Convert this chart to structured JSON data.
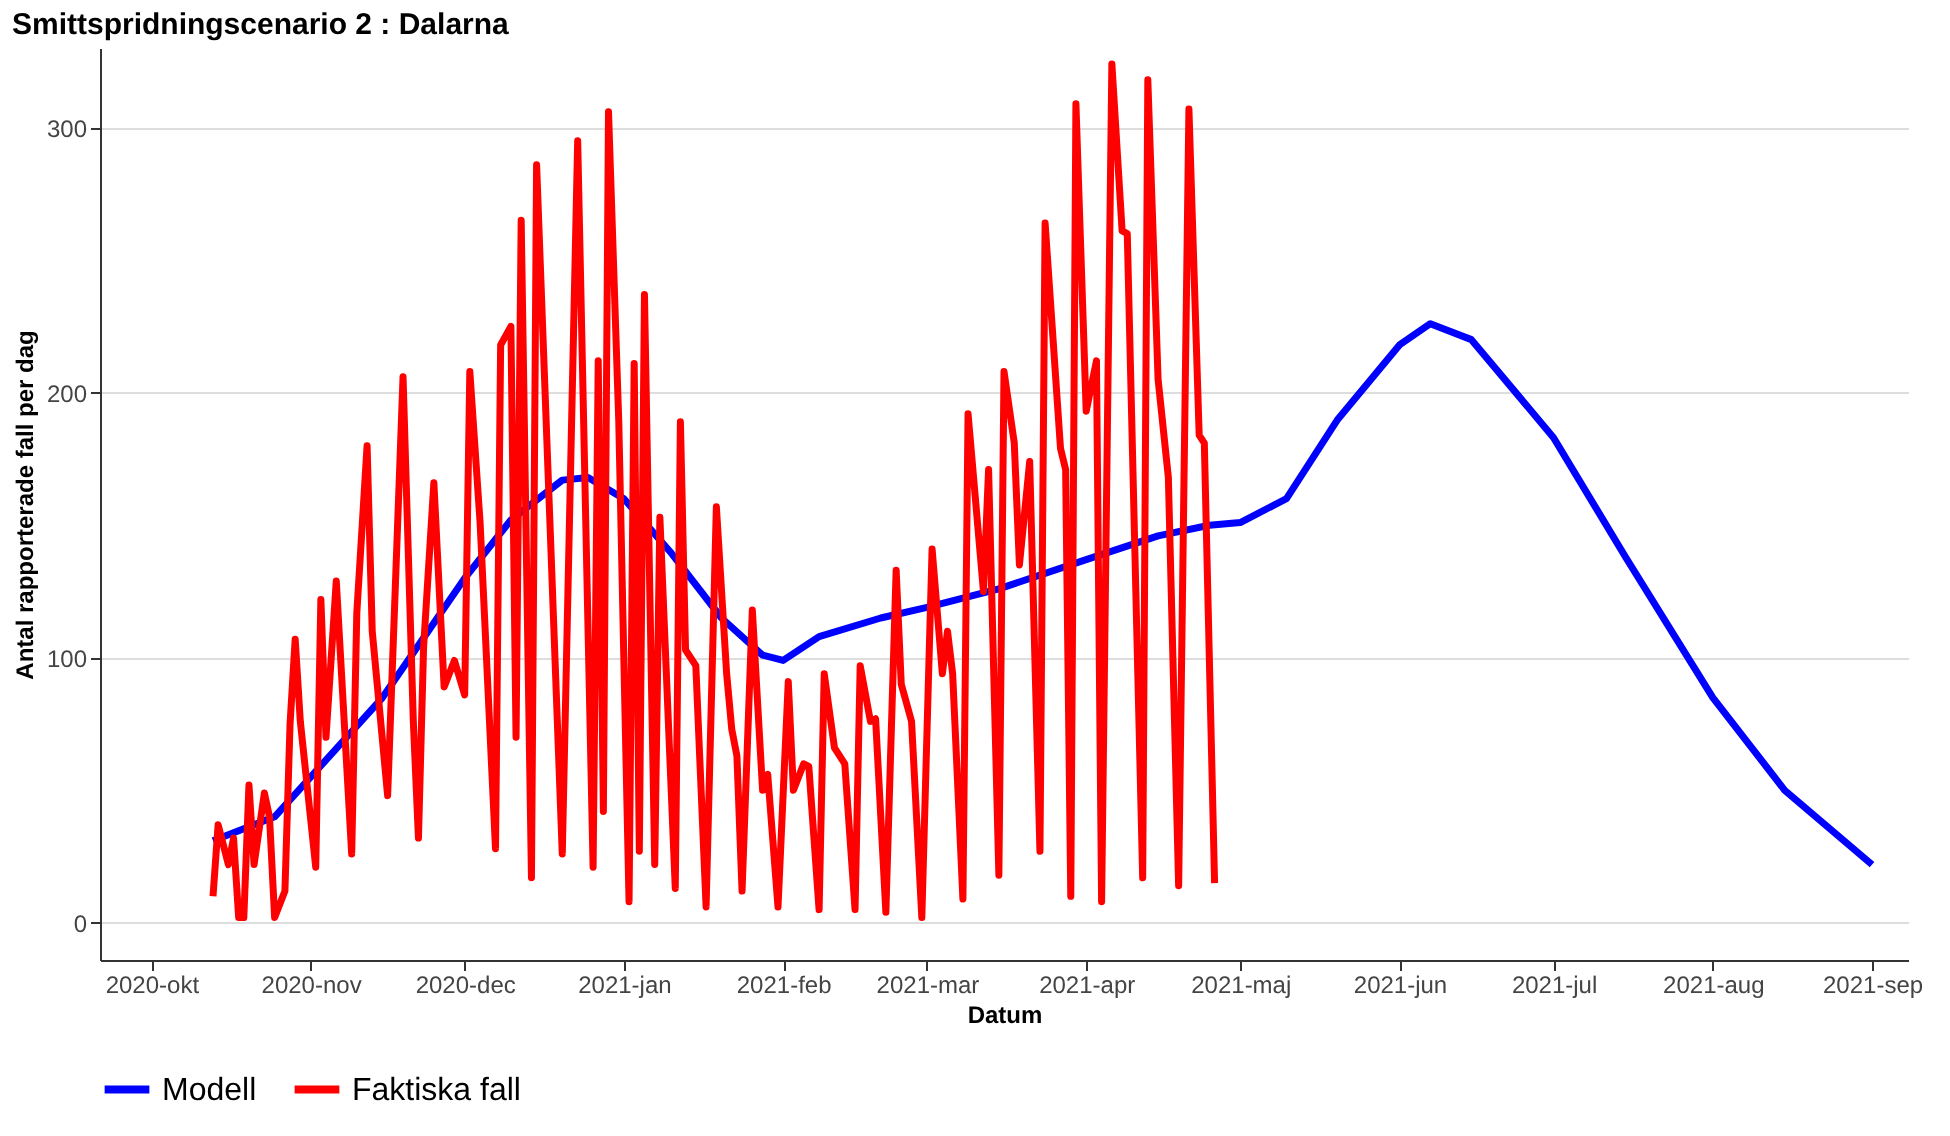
{
  "chart_data": {
    "type": "line",
    "title": "Smittspridningscenario  2 :  Dalarna",
    "xlabel": "Datum",
    "ylabel": "Antal rapporterade fall per dag",
    "xlim": [
      "2020-09-21",
      "2021-09-08"
    ],
    "ylim": [
      -14,
      330
    ],
    "yticks": [
      0,
      100,
      200,
      300
    ],
    "xticks": [
      {
        "value": "2020-10-01",
        "label": "2020-okt"
      },
      {
        "value": "2020-11-01",
        "label": "2020-nov"
      },
      {
        "value": "2020-12-01",
        "label": "2020-dec"
      },
      {
        "value": "2021-01-01",
        "label": "2021-jan"
      },
      {
        "value": "2021-02-01",
        "label": "2021-feb"
      },
      {
        "value": "2021-03-01",
        "label": "2021-mar"
      },
      {
        "value": "2021-04-01",
        "label": "2021-apr"
      },
      {
        "value": "2021-05-01",
        "label": "2021-maj"
      },
      {
        "value": "2021-06-01",
        "label": "2021-jun"
      },
      {
        "value": "2021-07-01",
        "label": "2021-jul"
      },
      {
        "value": "2021-08-01",
        "label": "2021-aug"
      },
      {
        "value": "2021-09-01",
        "label": "2021-sep"
      }
    ],
    "grid": "y",
    "legend": "bottom",
    "line_style": "solid",
    "marker": "none",
    "series": [
      {
        "name": "Modell",
        "color": "#0000ff",
        "x": [
          "2020-10-13",
          "2020-10-25",
          "2020-11-01",
          "2020-11-15",
          "2020-12-01",
          "2020-12-10",
          "2020-12-20",
          "2020-12-25",
          "2021-01-01",
          "2021-01-10",
          "2021-01-20",
          "2021-01-28",
          "2021-02-01",
          "2021-02-08",
          "2021-02-20",
          "2021-03-01",
          "2021-03-15",
          "2021-04-01",
          "2021-04-15",
          "2021-04-25",
          "2021-05-01",
          "2021-05-10",
          "2021-05-20",
          "2021-06-01",
          "2021-06-07",
          "2021-06-15",
          "2021-07-01",
          "2021-07-15",
          "2021-08-01",
          "2021-08-15",
          "2021-09-01"
        ],
        "values": [
          31,
          40,
          55,
          85,
          130,
          152,
          167,
          168,
          160,
          140,
          115,
          101,
          99,
          108,
          115,
          119,
          126,
          137,
          146,
          150,
          151,
          160,
          190,
          218,
          226,
          220,
          183,
          138,
          85,
          50,
          22
        ]
      },
      {
        "name": "Faktiska fall",
        "color": "#ff0000",
        "x": [
          "2020-10-13",
          "2020-10-14",
          "2020-10-16",
          "2020-10-17",
          "2020-10-18",
          "2020-10-19",
          "2020-10-20",
          "2020-10-21",
          "2020-10-23",
          "2020-10-24",
          "2020-10-25",
          "2020-10-27",
          "2020-10-28",
          "2020-10-29",
          "2020-10-30",
          "2020-11-02",
          "2020-11-03",
          "2020-11-04",
          "2020-11-06",
          "2020-11-09",
          "2020-11-10",
          "2020-11-12",
          "2020-11-13",
          "2020-11-16",
          "2020-11-19",
          "2020-11-21",
          "2020-11-22",
          "2020-11-23",
          "2020-11-25",
          "2020-11-27",
          "2020-11-29",
          "2020-12-01",
          "2020-12-02",
          "2020-12-04",
          "2020-12-07",
          "2020-12-08",
          "2020-12-10",
          "2020-12-11",
          "2020-12-12",
          "2020-12-14",
          "2020-12-15",
          "2020-12-20",
          "2020-12-23",
          "2020-12-26",
          "2020-12-27",
          "2020-12-28",
          "2020-12-29",
          "2020-12-31",
          "2021-01-02",
          "2021-01-03",
          "2021-01-04",
          "2021-01-05",
          "2021-01-07",
          "2021-01-08",
          "2021-01-11",
          "2021-01-12",
          "2021-01-13",
          "2021-01-15",
          "2021-01-17",
          "2021-01-19",
          "2021-01-21",
          "2021-01-22",
          "2021-01-23",
          "2021-01-24",
          "2021-01-26",
          "2021-01-28",
          "2021-01-29",
          "2021-01-31",
          "2021-02-02",
          "2021-02-03",
          "2021-02-05",
          "2021-02-06",
          "2021-02-08",
          "2021-02-09",
          "2021-02-11",
          "2021-02-13",
          "2021-02-15",
          "2021-02-16",
          "2021-02-18",
          "2021-02-19",
          "2021-02-21",
          "2021-02-23",
          "2021-02-24",
          "2021-02-26",
          "2021-02-28",
          "2021-03-02",
          "2021-03-04",
          "2021-03-05",
          "2021-03-06",
          "2021-03-08",
          "2021-03-09",
          "2021-03-12",
          "2021-03-13",
          "2021-03-15",
          "2021-03-16",
          "2021-03-18",
          "2021-03-19",
          "2021-03-21",
          "2021-03-23",
          "2021-03-24",
          "2021-03-27",
          "2021-03-28",
          "2021-03-29",
          "2021-03-30",
          "2021-04-01",
          "2021-04-03",
          "2021-04-04",
          "2021-04-06",
          "2021-04-08",
          "2021-04-09",
          "2021-04-12",
          "2021-04-13",
          "2021-04-15",
          "2021-04-17",
          "2021-04-19",
          "2021-04-21",
          "2021-04-23",
          "2021-04-24",
          "2021-04-26"
        ],
        "values": [
          10,
          37,
          22,
          32,
          2,
          2,
          52,
          22,
          49,
          40,
          2,
          12,
          75,
          107,
          76,
          21,
          122,
          70,
          129,
          26,
          117,
          180,
          110,
          48,
          206,
          76,
          32,
          104,
          166,
          89,
          99,
          86,
          208,
          151,
          28,
          218,
          225,
          70,
          265,
          17,
          286,
          26,
          295,
          21,
          212,
          42,
          306,
          189,
          8,
          211,
          27,
          237,
          22,
          153,
          13,
          189,
          103,
          97,
          6,
          157,
          94,
          73,
          63,
          12,
          118,
          50,
          56,
          6,
          91,
          50,
          60,
          59,
          5,
          94,
          66,
          60,
          5,
          97,
          76,
          77,
          4,
          133,
          90,
          76,
          2,
          141,
          94,
          110,
          94,
          9,
          192,
          125,
          171,
          18,
          208,
          181,
          135,
          174,
          27,
          264,
          179,
          171,
          10,
          309,
          193,
          212,
          8,
          324,
          261,
          260,
          17,
          318,
          205,
          168,
          14,
          307,
          184,
          181,
          15
        ]
      }
    ]
  }
}
